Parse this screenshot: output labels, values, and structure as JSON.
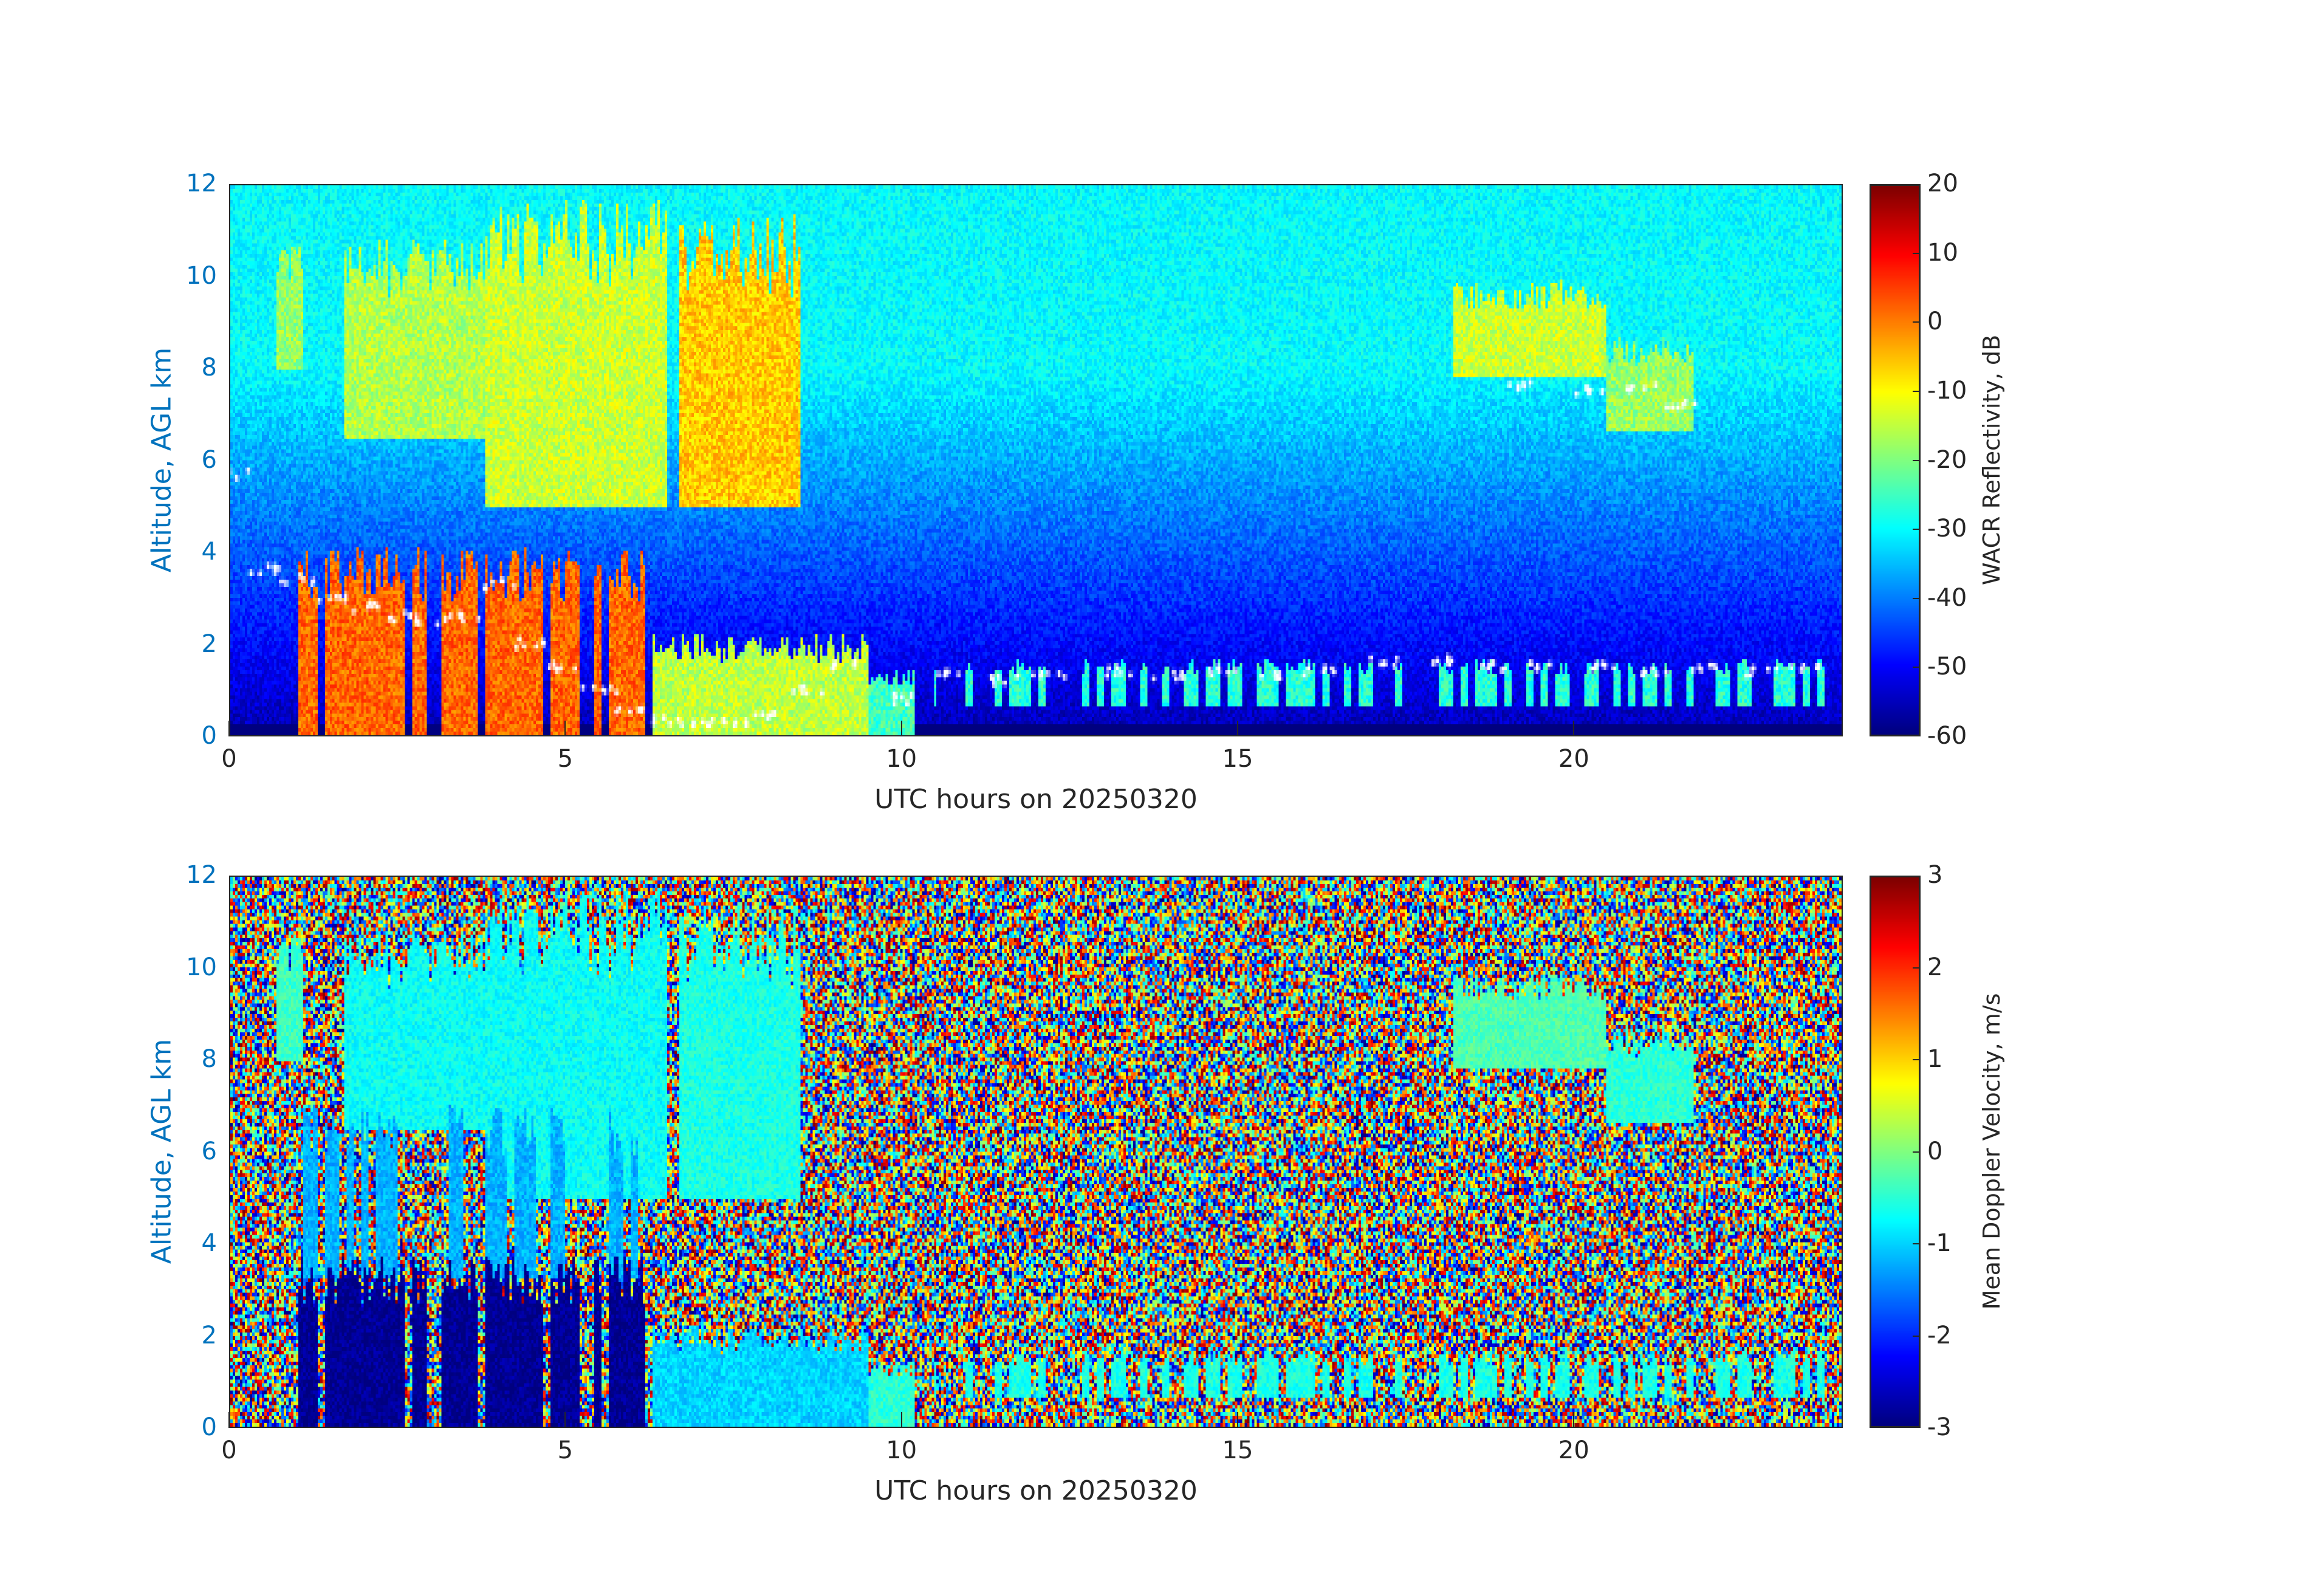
{
  "chart_data": [
    {
      "type": "heatmap",
      "xlabel": "UTC hours on 20250320",
      "ylabel": "Altitude, AGL km",
      "xlim": [
        0,
        24
      ],
      "ylim": [
        0,
        12
      ],
      "xticks": [
        "0",
        "5",
        "10",
        "15",
        "20"
      ],
      "yticks": [
        "0",
        "2",
        "4",
        "6",
        "8",
        "10",
        "12"
      ],
      "colorbar": {
        "label": "WACR Reflectivity, dB",
        "range": [
          -60,
          20
        ],
        "ticks": [
          "20",
          "10",
          "0",
          "-10",
          "-20",
          "-30",
          "-40",
          "-50",
          "-60"
        ],
        "colormap": "jet"
      },
      "background": {
        "surface": -56,
        "top": -30
      },
      "features": [
        {
          "t": [
            0.7,
            1.1
          ],
          "z": [
            8.0,
            10.3
          ],
          "value": -18
        },
        {
          "t": [
            1.7,
            3.8
          ],
          "z": [
            6.5,
            10.2
          ],
          "value": -16
        },
        {
          "t": [
            3.8,
            6.5
          ],
          "z": [
            5.0,
            10.8
          ],
          "value": -14
        },
        {
          "t": [
            6.7,
            8.5
          ],
          "z": [
            5.0,
            10.5
          ],
          "value": -6
        },
        {
          "t": [
            1.0,
            6.3
          ],
          "z": [
            0.0,
            3.5
          ],
          "value": 2
        },
        {
          "t": [
            6.3,
            9.5
          ],
          "z": [
            0.0,
            1.9
          ],
          "value": -15
        },
        {
          "t": [
            9.5,
            10.2
          ],
          "z": [
            0.0,
            1.3
          ],
          "value": -25
        },
        {
          "t": [
            18.2,
            20.5
          ],
          "z": [
            7.8,
            9.6
          ],
          "value": -14
        },
        {
          "t": [
            20.5,
            21.8
          ],
          "z": [
            6.6,
            8.4
          ],
          "value": -18
        },
        {
          "t": [
            10.5,
            23.8
          ],
          "z": [
            0.6,
            1.5
          ],
          "value": -27
        }
      ],
      "cloud_base_points": [
        [
          0.1,
          5.7
        ],
        [
          0.5,
          3.6
        ],
        [
          1.0,
          3.4
        ],
        [
          1.5,
          3.0
        ],
        [
          2.0,
          2.8
        ],
        [
          2.5,
          2.6
        ],
        [
          3.0,
          2.5
        ],
        [
          3.5,
          2.6
        ],
        [
          4.0,
          3.3
        ],
        [
          4.5,
          2.0
        ],
        [
          5.0,
          1.5
        ],
        [
          5.5,
          1.0
        ],
        [
          6.0,
          0.6
        ],
        [
          6.5,
          0.3
        ],
        [
          7.0,
          0.3
        ],
        [
          7.5,
          0.3
        ],
        [
          8.0,
          0.4
        ],
        [
          8.6,
          1.0
        ],
        [
          9.2,
          1.5
        ],
        [
          10.0,
          0.8
        ],
        [
          10.8,
          1.3
        ],
        [
          11.5,
          1.2
        ],
        [
          12.2,
          1.3
        ],
        [
          13.3,
          1.4
        ],
        [
          14.0,
          1.3
        ],
        [
          14.8,
          1.4
        ],
        [
          15.5,
          1.3
        ],
        [
          16.2,
          1.4
        ],
        [
          17.2,
          1.6
        ],
        [
          18.0,
          1.6
        ],
        [
          18.8,
          1.5
        ],
        [
          19.6,
          1.5
        ],
        [
          20.5,
          1.5
        ],
        [
          21.2,
          1.4
        ],
        [
          22.0,
          1.5
        ],
        [
          22.8,
          1.4
        ],
        [
          23.5,
          1.5
        ],
        [
          19.3,
          7.6
        ],
        [
          20.3,
          7.5
        ],
        [
          21.0,
          7.6
        ],
        [
          21.6,
          7.2
        ]
      ]
    },
    {
      "type": "heatmap",
      "xlabel": "UTC hours on 20250320",
      "ylabel": "Altitude, AGL km",
      "xlim": [
        0,
        24
      ],
      "ylim": [
        0,
        12
      ],
      "xticks": [
        "0",
        "5",
        "10",
        "15",
        "20"
      ],
      "yticks": [
        "0",
        "2",
        "4",
        "6",
        "8",
        "10",
        "12"
      ],
      "colorbar": {
        "label": "Mean Doppler Velocity, m/s",
        "range": [
          -3,
          3
        ],
        "ticks": [
          "3",
          "2",
          "1",
          "0",
          "-1",
          "-2",
          "-3"
        ],
        "colormap": "jet"
      },
      "background": "noise",
      "features": [
        {
          "t": [
            0.7,
            1.1
          ],
          "z": [
            8.0,
            10.3
          ],
          "value": -0.4
        },
        {
          "t": [
            1.7,
            3.8
          ],
          "z": [
            6.5,
            10.2
          ],
          "value": -0.7
        },
        {
          "t": [
            3.8,
            6.5
          ],
          "z": [
            5.0,
            10.8
          ],
          "value": -0.7
        },
        {
          "t": [
            6.7,
            8.5
          ],
          "z": [
            5.0,
            10.5
          ],
          "value": -0.6
        },
        {
          "t": [
            1.0,
            6.3
          ],
          "z": [
            3.2,
            6.5
          ],
          "value": -1.2
        },
        {
          "t": [
            1.0,
            6.3
          ],
          "z": [
            0.0,
            3.2
          ],
          "value": -2.9
        },
        {
          "t": [
            6.3,
            9.5
          ],
          "z": [
            0.0,
            1.9
          ],
          "value": -1.0
        },
        {
          "t": [
            9.5,
            10.2
          ],
          "z": [
            0.0,
            1.3
          ],
          "value": -0.5
        },
        {
          "t": [
            18.2,
            20.5
          ],
          "z": [
            7.8,
            9.6
          ],
          "value": -0.3
        },
        {
          "t": [
            20.5,
            21.8
          ],
          "z": [
            6.6,
            8.4
          ],
          "value": -0.5
        },
        {
          "t": [
            10.5,
            23.8
          ],
          "z": [
            0.6,
            1.5
          ],
          "value": -0.6
        }
      ]
    }
  ]
}
